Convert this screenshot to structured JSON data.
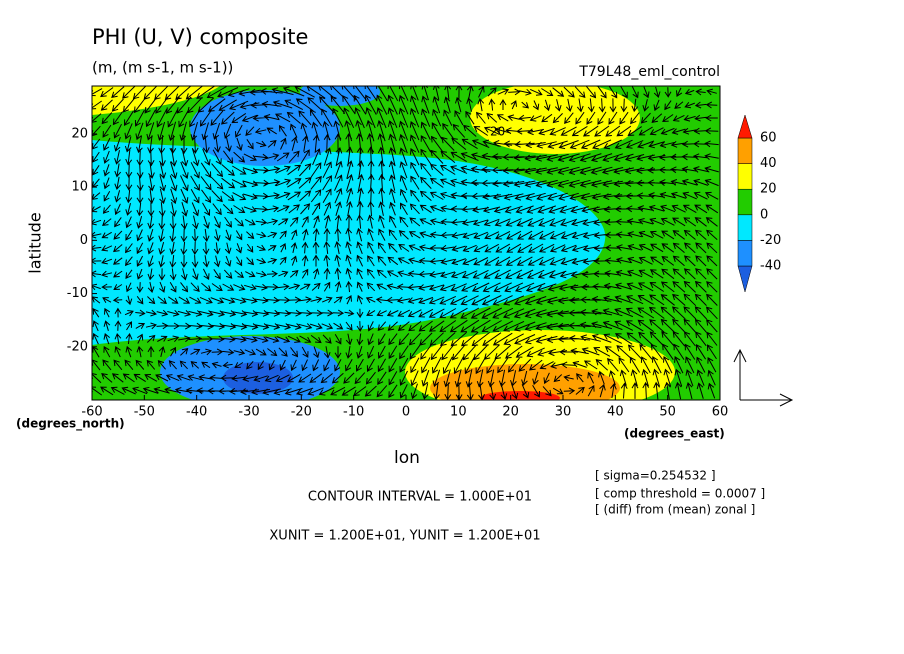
{
  "chart_data": {
    "type": "contour-vector",
    "title": "PHI (U, V) composite",
    "subtitle": "(m, (m s-1, m s-1))",
    "run_label": "T79L48_eml_control",
    "xlabel": "lon",
    "ylabel": "latitude",
    "x_units": "(degrees_east)",
    "y_units": "(degrees_north)",
    "xlim": [
      -60,
      60
    ],
    "ylim": [
      -30,
      29
    ],
    "xticks": [
      -60,
      -50,
      -40,
      -30,
      -20,
      -10,
      0,
      10,
      20,
      30,
      40,
      50,
      60
    ],
    "yticks": [
      -20,
      -10,
      0,
      10,
      20
    ],
    "colorbar": {
      "levels": [
        -40,
        -20,
        0,
        20,
        40,
        60
      ],
      "colors": [
        "#1c5fe0",
        "#1e90ff",
        "#00e8ff",
        "#22cc00",
        "#ffff00",
        "#ffa000",
        "#ff1a00"
      ]
    },
    "contour_labels": [
      "20"
    ],
    "notes": [
      "[ sigma=0.254532 ]",
      "[ comp threshold = 0.0007 ]",
      "[ (diff) from (mean) zonal ]"
    ],
    "contour_interval": "CONTOUR INTERVAL = 1.000E+01",
    "vector_units": "XUNIT = 1.200E+01, YUNIT = 1.200E+01"
  }
}
